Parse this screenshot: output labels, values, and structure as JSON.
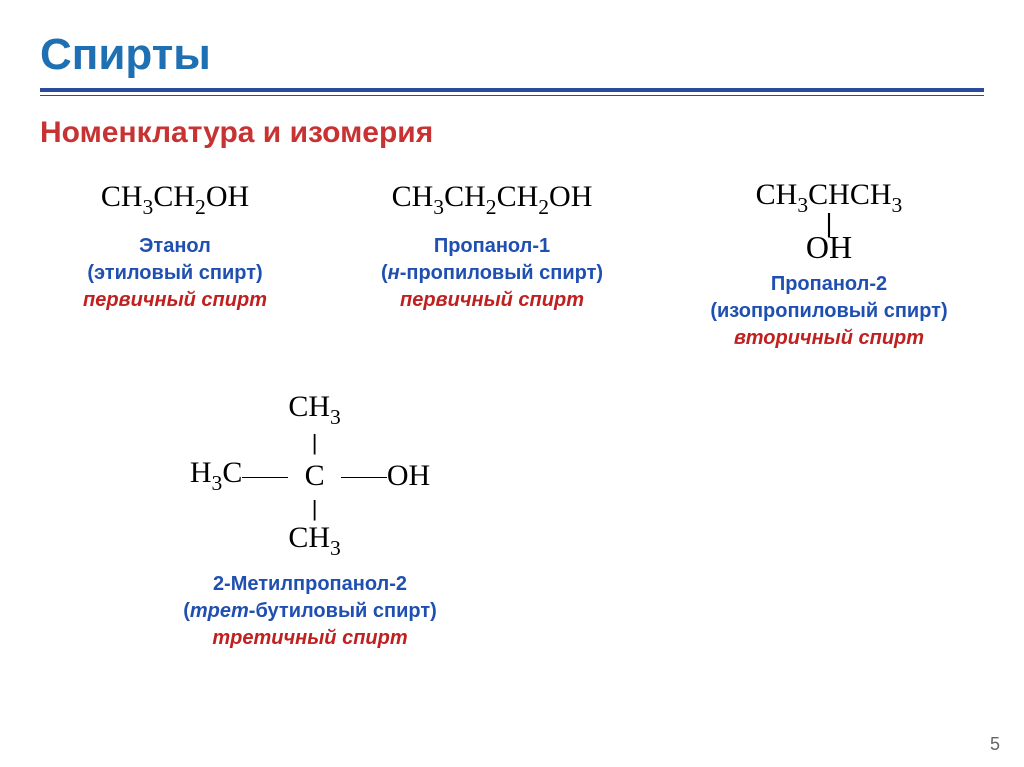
{
  "colors": {
    "title": "#1f6fb3",
    "subtitle": "#c83232",
    "hr": "#2a4a9a",
    "blue_text": "#1f4fb0",
    "red_text": "#c02020",
    "black": "#000000"
  },
  "title": "Спирты",
  "subtitle": "Номенклатура и изомерия",
  "compounds": {
    "ethanol": {
      "formula_html": "CH<span class='sub'>3</span>CH<span class='sub'>2</span>OH",
      "name1": "Этанол",
      "name2": "(этиловый спирт)",
      "type": "первичный спирт"
    },
    "propanol1": {
      "formula_html": "CH<span class='sub'>3</span>CH<span class='sub'>2</span>CH<span class='sub'>2</span>OH",
      "name1": "Пропанол-1",
      "name2_html": "(<i>н</i>-пропиловый спирт)",
      "type": "первичный спирт"
    },
    "propanol2": {
      "top_html": "CH<span class='sub'>3</span>CHCH<span class='sub'>3</span>",
      "bottom": "OH",
      "name1": "Пропанол-2",
      "name2": "(изопропиловый спирт)",
      "type": "вторичный спирт"
    },
    "tbutanol": {
      "left_html": "H<span class='sub'>3</span>C",
      "center": "C",
      "right": "OH",
      "top_html": "CH<span class='sub'>3</span>",
      "bottom_html": "CH<span class='sub'>3</span>",
      "name1": "2-Метилпропанол-2",
      "name2_html": "(<i>трет</i>-бутиловый спирт)",
      "type": "третичный спирт"
    }
  },
  "page_number": "5"
}
